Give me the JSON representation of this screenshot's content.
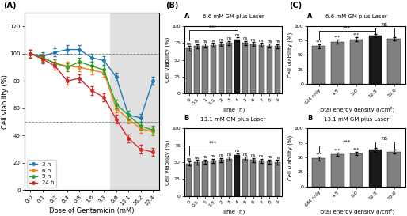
{
  "chart_data": [
    {
      "type": "line",
      "x_label": "Dose of Gentamicin (mM)",
      "y_label": "Cell viability (%)",
      "categories": [
        "0.0",
        "0.1",
        "0.2",
        "0.4",
        "0.8",
        "1.6",
        "3.3",
        "6.6",
        "13.1",
        "26.2",
        "52.4"
      ],
      "series": [
        {
          "name": "3 h",
          "values": [
            100,
            98,
            101,
            103,
            103,
            97,
            95,
            83,
            55,
            53,
            80
          ],
          "errors": [
            3,
            3,
            3,
            3,
            3,
            3,
            3,
            3,
            3,
            3,
            3
          ]
        },
        {
          "name": "6 h",
          "values": [
            100,
            97,
            93,
            91,
            90,
            88,
            86,
            60,
            52,
            45,
            43
          ],
          "errors": [
            3,
            3,
            3,
            3,
            3,
            3,
            3,
            3,
            3,
            3,
            3
          ]
        },
        {
          "name": "9 h",
          "values": [
            100,
            97,
            93,
            90,
            94,
            91,
            88,
            63,
            55,
            47,
            44
          ],
          "errors": [
            3,
            3,
            3,
            3,
            3,
            3,
            3,
            3,
            3,
            3,
            3
          ]
        },
        {
          "name": "24 h",
          "values": [
            100,
            96,
            91,
            80,
            82,
            73,
            68,
            52,
            38,
            30,
            28
          ],
          "errors": [
            3,
            3,
            3,
            3,
            3,
            3,
            3,
            3,
            3,
            3,
            3
          ]
        }
      ],
      "marker": "o",
      "ylim": [
        0,
        130
      ],
      "yticks": [
        0,
        20,
        40,
        60,
        80,
        100,
        120
      ],
      "legend": "lower left",
      "annotations": [
        {
          "kind": "panel_label",
          "text": "(A)"
        },
        {
          "kind": "shade",
          "from": "6.6",
          "to": "52.4"
        },
        {
          "kind": "hline",
          "y": 50
        },
        {
          "kind": "hline",
          "y": 100
        }
      ]
    },
    {
      "type": "bar",
      "title": "6.6 mM GM plus Laser",
      "x_label": "Time (h)",
      "y_label": "Cell viability (%)",
      "categories": [
        "0",
        "0.5",
        "1",
        "1.5",
        "2",
        "3",
        "4",
        "5",
        "6",
        "7",
        "8",
        "9"
      ],
      "values": [
        67,
        70,
        71,
        72,
        73,
        75,
        80,
        75,
        73,
        72,
        71,
        70
      ],
      "errors": [
        3,
        3,
        3,
        3,
        3,
        3,
        3,
        3,
        3,
        3,
        3,
        3
      ],
      "colors": [
        "#808080",
        "#808080",
        "#808080",
        "#808080",
        "#808080",
        "#808080",
        "#1a1a1a",
        "#808080",
        "#808080",
        "#808080",
        "#808080",
        "#808080"
      ],
      "ylim": [
        0,
        100
      ],
      "yticks": [
        0,
        25,
        50,
        75,
        100
      ],
      "annotations": [
        {
          "kind": "panel_label",
          "text": "(B)"
        },
        {
          "kind": "sub_label",
          "text": "A"
        },
        {
          "kind": "bar_mark",
          "x": "0",
          "text": "ns"
        },
        {
          "kind": "bar_mark",
          "x": "0.5",
          "text": "ns"
        },
        {
          "kind": "bar_mark",
          "x": "1",
          "text": "ns"
        },
        {
          "kind": "bar_mark",
          "x": "1.5",
          "text": "ns"
        },
        {
          "kind": "bar_mark",
          "x": "2",
          "text": "ns"
        },
        {
          "kind": "bar_mark",
          "x": "3",
          "text": "ns"
        },
        {
          "kind": "bar_mark",
          "x": "4",
          "text": "ns"
        },
        {
          "kind": "bar_mark",
          "x": "5",
          "text": "ns"
        },
        {
          "kind": "bar_mark",
          "x": "6",
          "text": "ns"
        },
        {
          "kind": "bar_mark",
          "x": "7",
          "text": "ns"
        },
        {
          "kind": "bar_mark",
          "x": "8",
          "text": "ns"
        },
        {
          "kind": "bar_mark",
          "x": "9",
          "text": "ns"
        },
        {
          "kind": "bracket",
          "x": [
            "0",
            "4"
          ],
          "text": "***"
        }
      ]
    },
    {
      "type": "bar",
      "title": "13.1 mM GM plus Laser",
      "x_label": "Time (h)",
      "y_label": "Cell viability (%)",
      "categories": [
        "0",
        "0.5",
        "1",
        "1.5",
        "2",
        "3",
        "4",
        "5",
        "6",
        "7",
        "8",
        "9"
      ],
      "values": [
        48,
        50,
        51,
        52,
        53,
        55,
        60,
        55,
        53,
        52,
        51,
        50
      ],
      "errors": [
        3,
        3,
        3,
        3,
        3,
        3,
        3,
        3,
        3,
        3,
        3,
        3
      ],
      "colors": [
        "#808080",
        "#808080",
        "#808080",
        "#808080",
        "#808080",
        "#808080",
        "#1a1a1a",
        "#808080",
        "#808080",
        "#808080",
        "#808080",
        "#808080"
      ],
      "ylim": [
        0,
        100
      ],
      "yticks": [
        0,
        25,
        50,
        75,
        100
      ],
      "annotations": [
        {
          "kind": "sub_label",
          "text": "B"
        },
        {
          "kind": "bar_mark",
          "x": "0",
          "text": "ns"
        },
        {
          "kind": "bar_mark",
          "x": "0.5",
          "text": "ns"
        },
        {
          "kind": "bar_mark",
          "x": "1",
          "text": "ns"
        },
        {
          "kind": "bar_mark",
          "x": "1.5",
          "text": "ns"
        },
        {
          "kind": "bar_mark",
          "x": "2",
          "text": "ns"
        },
        {
          "kind": "bar_mark",
          "x": "3",
          "text": "ns"
        },
        {
          "kind": "bar_mark",
          "x": "4",
          "text": "ns"
        },
        {
          "kind": "bar_mark",
          "x": "5",
          "text": "ns"
        },
        {
          "kind": "bar_mark",
          "x": "6",
          "text": "ns"
        },
        {
          "kind": "bar_mark",
          "x": "7",
          "text": "ns"
        },
        {
          "kind": "bar_mark",
          "x": "8",
          "text": "ns"
        },
        {
          "kind": "bar_mark",
          "x": "9",
          "text": "ns"
        },
        {
          "kind": "bracket",
          "x": [
            "0",
            "4"
          ],
          "text": "***"
        }
      ]
    },
    {
      "type": "bar",
      "title": "6.6 mM GM plus Laser",
      "x_label": "Total energy density (J/cm²)",
      "y_label": "Cell viability (%)",
      "categories": [
        "GM only",
        "4.5",
        "8.0",
        "12.5",
        "18.0"
      ],
      "values": [
        65,
        73,
        77,
        83,
        78
      ],
      "errors": [
        3,
        3,
        3,
        3,
        3
      ],
      "colors": [
        "#808080",
        "#808080",
        "#808080",
        "#1a1a1a",
        "#808080"
      ],
      "ylim": [
        0,
        100
      ],
      "yticks": [
        0,
        25,
        50,
        75,
        100
      ],
      "annotations": [
        {
          "kind": "panel_label",
          "text": "(C)"
        },
        {
          "kind": "sub_label",
          "text": "A"
        },
        {
          "kind": "bar_mark",
          "x": "GM only",
          "text": "***"
        },
        {
          "kind": "bar_mark",
          "x": "4.5",
          "text": "***"
        },
        {
          "kind": "bar_mark",
          "x": "8.0",
          "text": "***"
        },
        {
          "kind": "bracket",
          "x": [
            "GM only",
            "12.5"
          ],
          "text": "***"
        },
        {
          "kind": "bracket",
          "x": [
            "12.5",
            "18.0"
          ],
          "text": "ns"
        }
      ]
    },
    {
      "type": "bar",
      "title": "13.1 mM GM plus Laser",
      "x_label": "Total energy density (J/cm²)",
      "y_label": "Cell viability (%)",
      "categories": [
        "GM only",
        "4.5",
        "8.0",
        "12.5",
        "18.0"
      ],
      "values": [
        48,
        55,
        57,
        63,
        60
      ],
      "errors": [
        3,
        3,
        3,
        3,
        3
      ],
      "colors": [
        "#808080",
        "#808080",
        "#808080",
        "#1a1a1a",
        "#808080"
      ],
      "ylim": [
        0,
        100
      ],
      "yticks": [
        0,
        25,
        50,
        75,
        100
      ],
      "annotations": [
        {
          "kind": "sub_label",
          "text": "B"
        },
        {
          "kind": "bar_mark",
          "x": "GM only",
          "text": "***"
        },
        {
          "kind": "bar_mark",
          "x": "4.5",
          "text": "***"
        },
        {
          "kind": "bar_mark",
          "x": "8.0",
          "text": "***"
        },
        {
          "kind": "bracket",
          "x": [
            "GM only",
            "12.5"
          ],
          "text": "***"
        },
        {
          "kind": "bracket",
          "x": [
            "12.5",
            "18.0"
          ],
          "text": "ns"
        }
      ]
    }
  ]
}
